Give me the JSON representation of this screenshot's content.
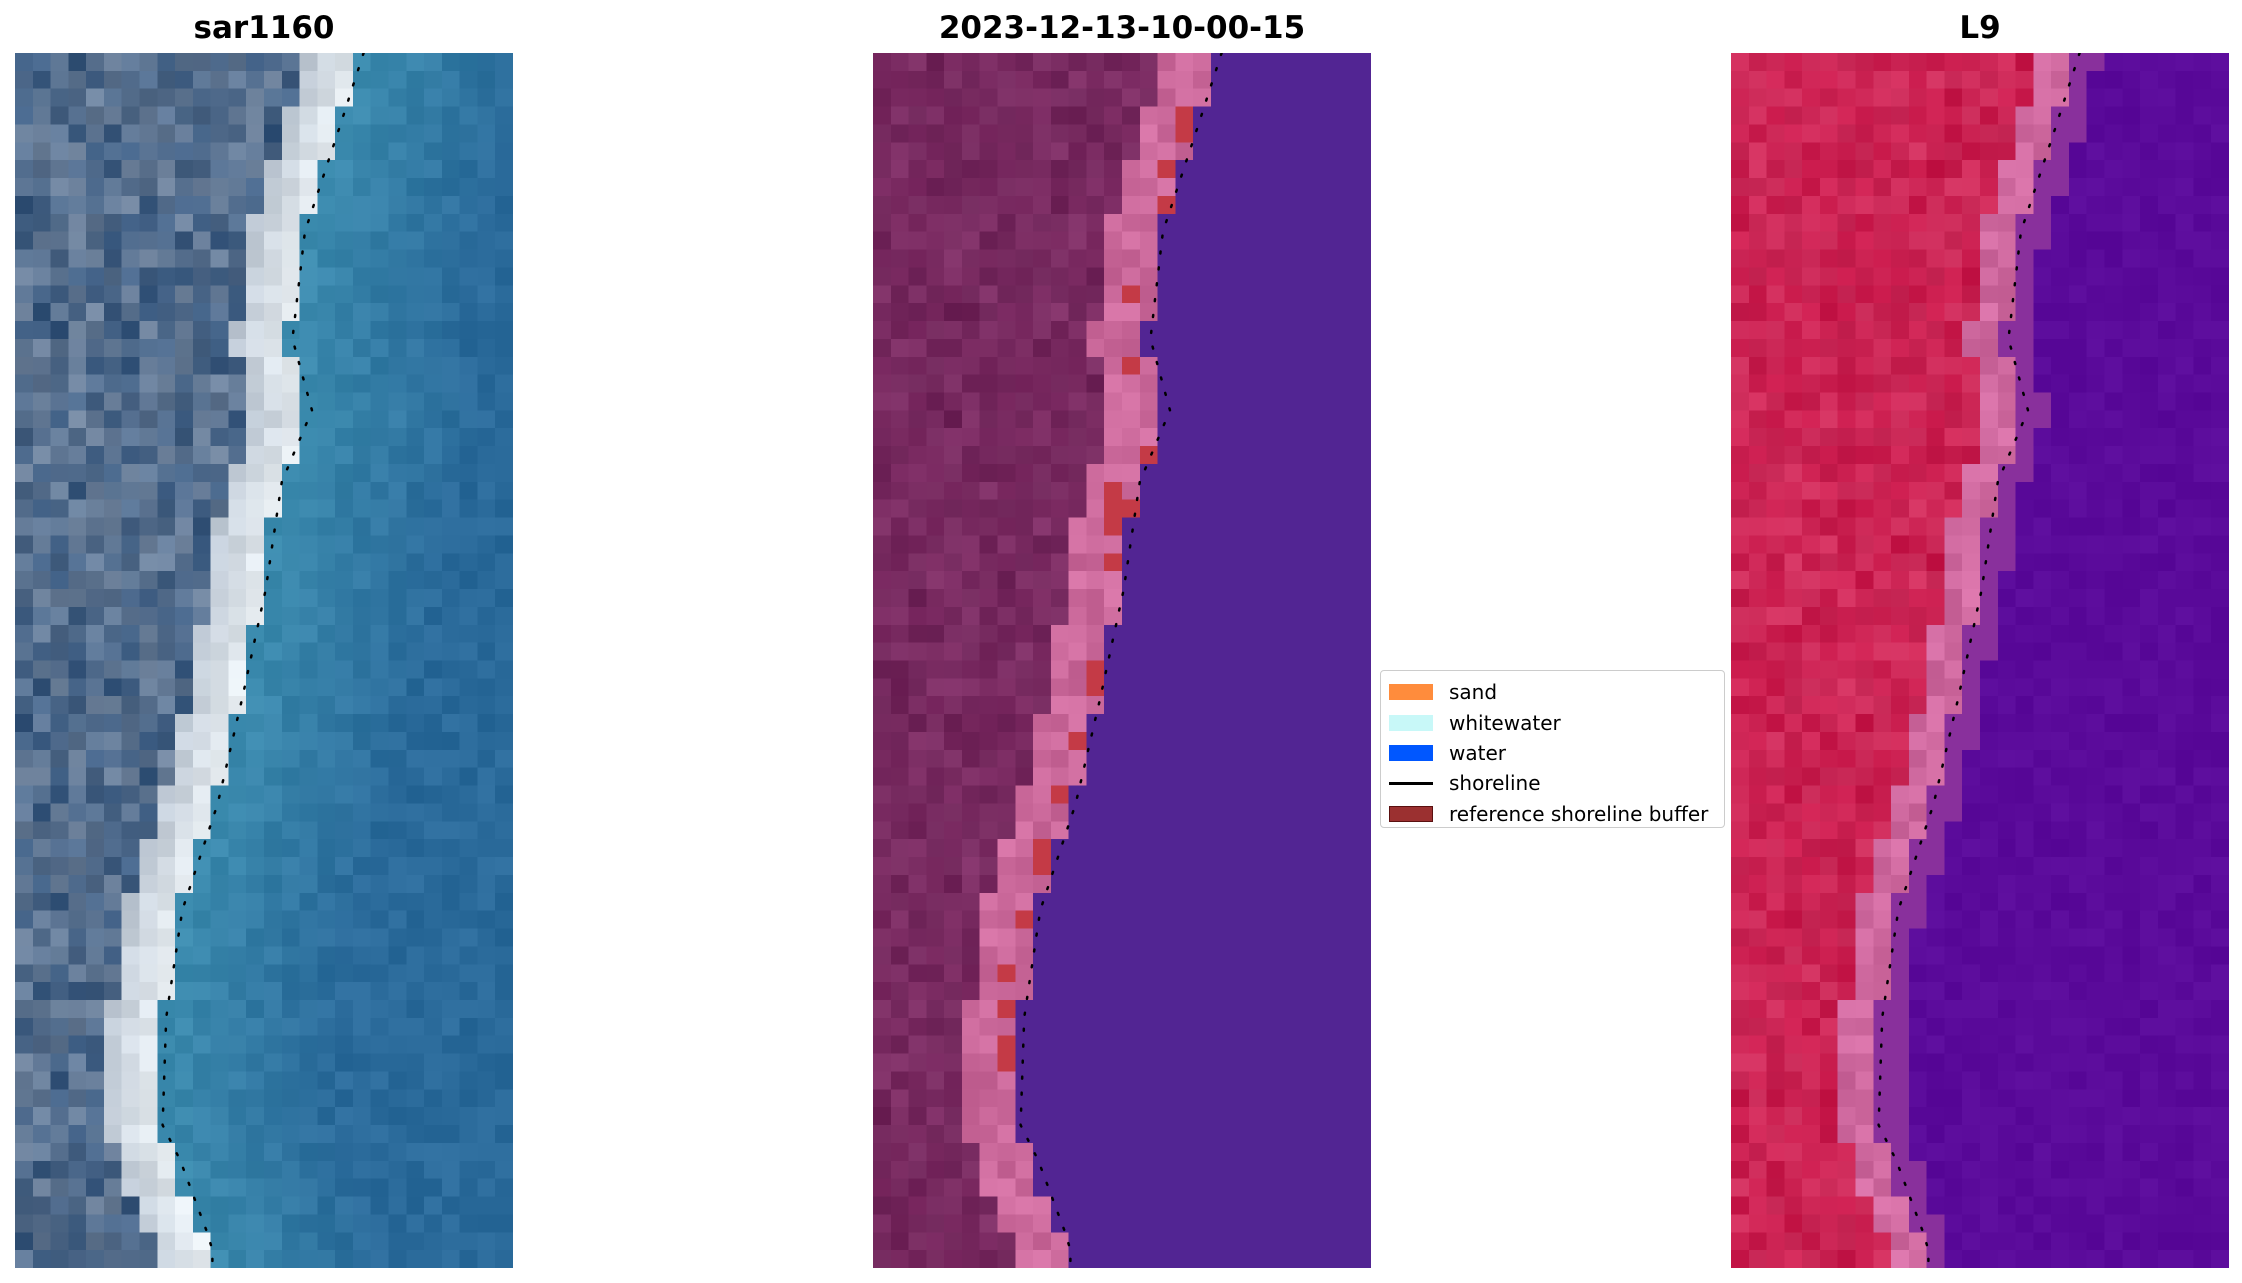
{
  "panels": [
    {
      "title": "sar1160",
      "kind": "rgb"
    },
    {
      "title": "2023-12-13-10-00-15",
      "kind": "classified"
    },
    {
      "title": "L9",
      "kind": "falsecolor"
    }
  ],
  "legend": {
    "items": [
      {
        "label": "sand",
        "type": "patch",
        "color": "#ff8c3c",
        "edge": "none"
      },
      {
        "label": "whitewater",
        "type": "patch",
        "color": "#c8f8f8",
        "edge": "none"
      },
      {
        "label": "water",
        "type": "patch",
        "color": "#0057ff",
        "edge": "none"
      },
      {
        "label": "shoreline",
        "type": "line",
        "color": "#000000",
        "edge": "none"
      },
      {
        "label": "reference shoreline buffer",
        "type": "patch",
        "color": "#9b3030",
        "edge": "#5a1010"
      }
    ]
  },
  "colors": {
    "ocean": "#2a6a9a",
    "land_dark": "#3a5a80",
    "beach": "#e8eef2",
    "classified_water": "#522593",
    "classified_land": "#6e2458",
    "classified_buffer": "#c43a46",
    "classified_sand": "#cc6a9c",
    "falsecolor_water": "#5a0a9a",
    "falsecolor_land": "#c8184a",
    "falsecolor_beach": "#d06aa0"
  }
}
